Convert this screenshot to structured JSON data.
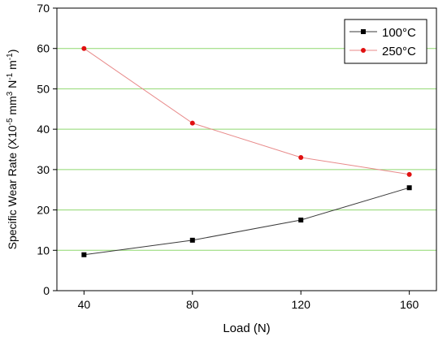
{
  "chart_data": {
    "type": "line",
    "title": "",
    "xlabel": "Load (N)",
    "ylabel_parts": {
      "base": "Specific Wear Rate (X10",
      "sup1": "-5",
      "mid1": " mm",
      "sup2": "3",
      "mid2": " N",
      "sup3": "-1",
      "mid3": " m",
      "sup4": "-1",
      "end": ")"
    },
    "x": [
      40,
      80,
      120,
      160
    ],
    "x_ticks": [
      40,
      80,
      120,
      160
    ],
    "xlim": [
      30,
      170
    ],
    "y_ticks": [
      0,
      10,
      20,
      30,
      40,
      50,
      60,
      70
    ],
    "ylim": [
      0,
      70
    ],
    "grid": true,
    "grid_color": "#8fd86f",
    "legend_position": "top-right",
    "series": [
      {
        "name": "100°C",
        "values": [
          8.9,
          12.5,
          17.5,
          25.5
        ],
        "color": "#3a3a3a",
        "marker_color": "#000000",
        "marker": "square"
      },
      {
        "name": "250°C",
        "values": [
          60,
          41.5,
          33,
          28.8
        ],
        "color": "#e88a8a",
        "marker_color": "#e01010",
        "marker": "circle"
      }
    ]
  }
}
